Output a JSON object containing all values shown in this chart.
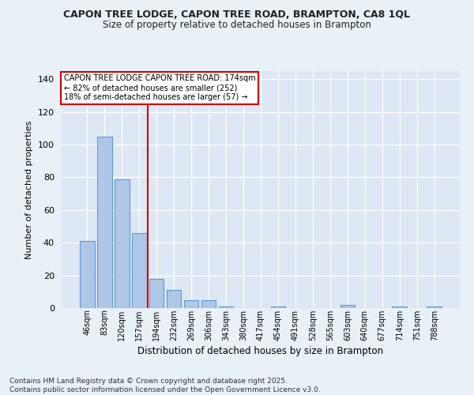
{
  "title1": "CAPON TREE LODGE, CAPON TREE ROAD, BRAMPTON, CA8 1QL",
  "title2": "Size of property relative to detached houses in Brampton",
  "xlabel": "Distribution of detached houses by size in Brampton",
  "ylabel": "Number of detached properties",
  "categories": [
    "46sqm",
    "83sqm",
    "120sqm",
    "157sqm",
    "194sqm",
    "232sqm",
    "269sqm",
    "306sqm",
    "343sqm",
    "380sqm",
    "417sqm",
    "454sqm",
    "491sqm",
    "528sqm",
    "565sqm",
    "603sqm",
    "640sqm",
    "677sqm",
    "714sqm",
    "751sqm",
    "788sqm"
  ],
  "values": [
    41,
    105,
    79,
    46,
    18,
    11,
    5,
    5,
    1,
    0,
    0,
    1,
    0,
    0,
    0,
    2,
    0,
    0,
    1,
    0,
    1
  ],
  "bar_color": "#aec6e8",
  "bar_edge_color": "#5b9bd5",
  "vline_x": 3.5,
  "vline_color": "#cc0000",
  "annotation_line1": "CAPON TREE LODGE CAPON TREE ROAD: 174sqm",
  "annotation_line2": "← 82% of detached houses are smaller (252)",
  "annotation_line3": "18% of semi-detached houses are larger (57) →",
  "box_edge_color": "#cc0000",
  "ylim": [
    0,
    145
  ],
  "yticks": [
    0,
    20,
    40,
    60,
    80,
    100,
    120,
    140
  ],
  "footer1": "Contains HM Land Registry data © Crown copyright and database right 2025.",
  "footer2": "Contains public sector information licensed under the Open Government Licence v3.0.",
  "bg_color": "#e8f0f8",
  "plot_bg_color": "#dde8f4"
}
